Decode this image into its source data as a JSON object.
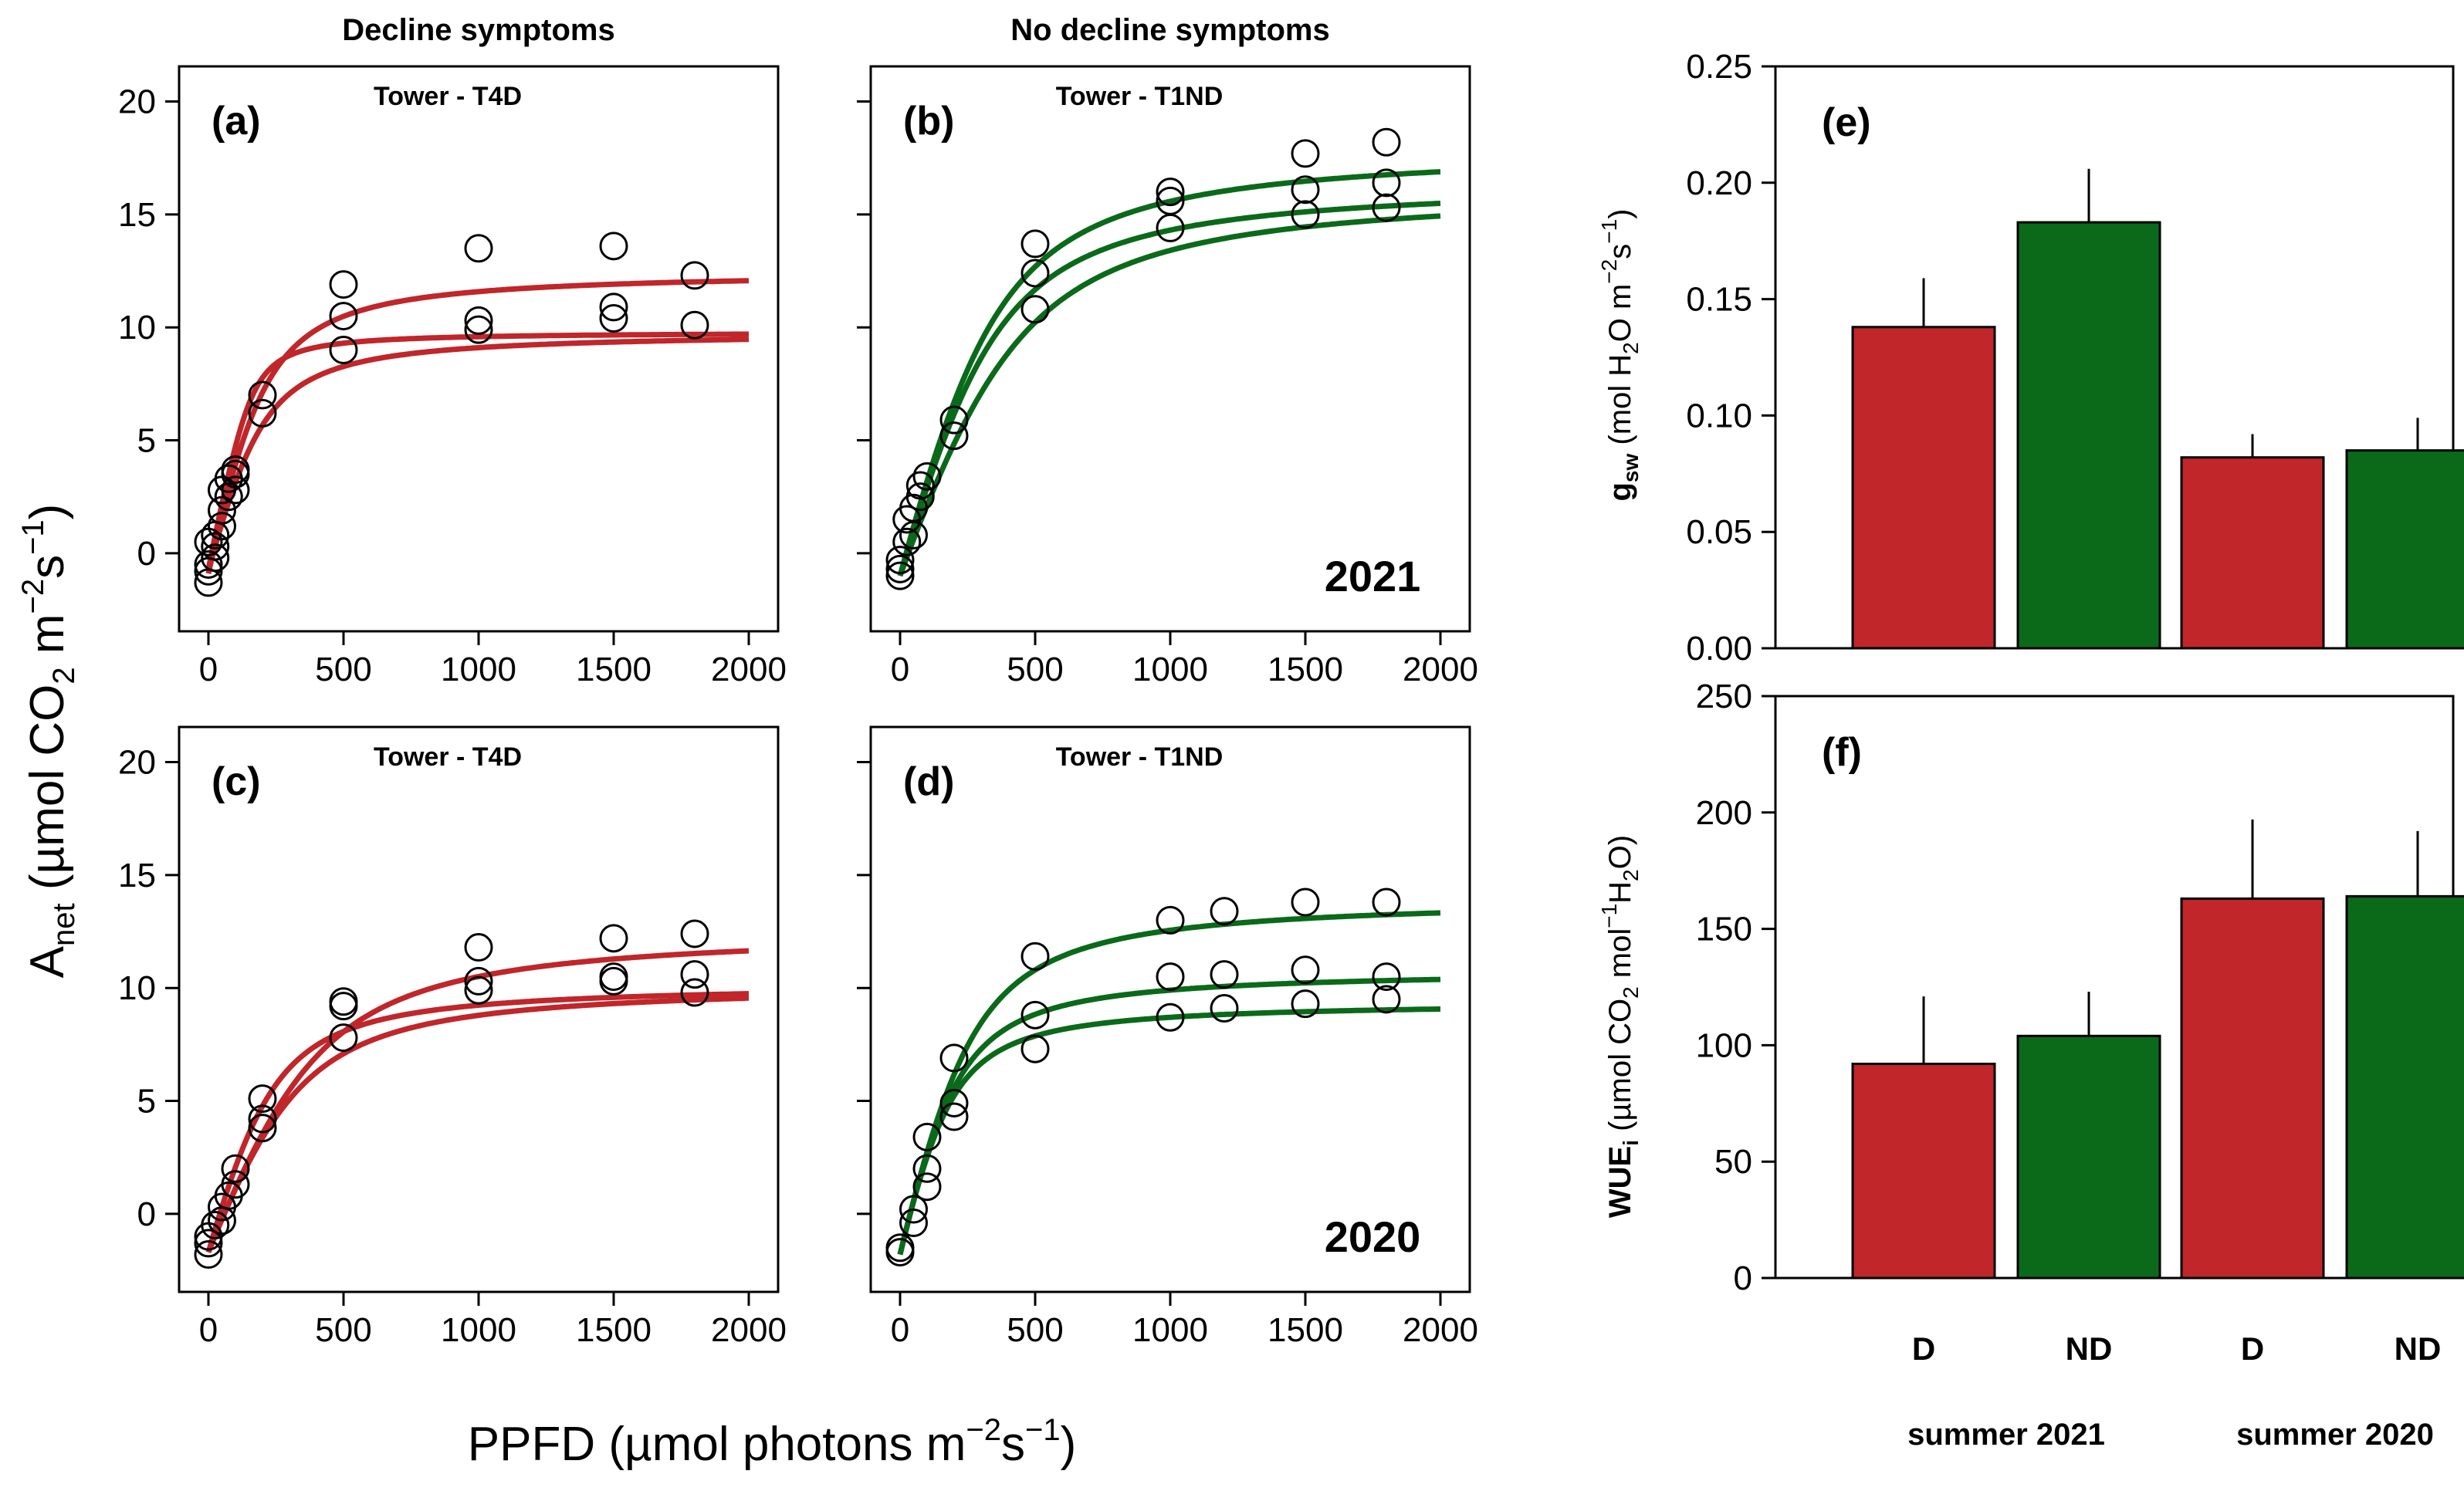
{
  "chart_data": [
    {
      "type": "scatter",
      "panel": "(a)",
      "column_title": "Decline symptoms",
      "subtitle": "Tower - T4D",
      "year_label": "",
      "color": "#c0262a",
      "xlim": [
        0,
        2000
      ],
      "ylim": [
        -2.5,
        20
      ],
      "xticks": [
        0,
        500,
        1000,
        1500,
        2000
      ],
      "yticks": [
        0,
        5,
        10,
        15,
        20
      ],
      "curves": [
        {
          "amax": 13.4,
          "phi": 0.055,
          "rd": 0.9
        },
        {
          "amax": 10.5,
          "phi": 0.06,
          "rd": 0.7,
          "theta": 0.9
        },
        {
          "amax": 10.6,
          "phi": 0.045,
          "rd": 0.8
        }
      ],
      "points": {
        "x": [
          0,
          0,
          0,
          0,
          25,
          25,
          25,
          50,
          50,
          50,
          75,
          75,
          100,
          100,
          100,
          200,
          200,
          500,
          500,
          500,
          1000,
          1000,
          1000,
          1500,
          1500,
          1500,
          1800,
          1800
        ],
        "y": [
          -1.3,
          -0.8,
          -0.5,
          0.5,
          -0.2,
          0.3,
          0.8,
          1.2,
          1.9,
          2.8,
          2.5,
          3.3,
          2.8,
          3.5,
          3.7,
          6.2,
          7.0,
          9.0,
          10.5,
          11.9,
          9.9,
          10.3,
          13.5,
          10.4,
          10.9,
          13.6,
          10.1,
          12.3
        ]
      }
    },
    {
      "type": "scatter",
      "panel": "(b)",
      "column_title": "No decline symptoms",
      "subtitle": "Tower - T1ND",
      "year_label": "2021",
      "color": "#0a6a1a",
      "xlim": [
        0,
        2000
      ],
      "ylim": [
        -2.5,
        20
      ],
      "xticks": [
        0,
        500,
        1000,
        1500,
        2000
      ],
      "yticks": [
        0,
        5,
        10,
        15,
        20
      ],
      "curves": [
        {
          "amax": 19.0,
          "phi": 0.045,
          "rd": 1.0
        },
        {
          "amax": 17.5,
          "phi": 0.042,
          "rd": 1.0
        },
        {
          "amax": 17.2,
          "phi": 0.033,
          "rd": 1.0
        }
      ],
      "points": {
        "x": [
          0,
          0,
          0,
          25,
          25,
          50,
          50,
          75,
          75,
          100,
          200,
          200,
          500,
          500,
          500,
          1000,
          1000,
          1000,
          1500,
          1500,
          1500,
          1800,
          1800,
          1800
        ],
        "y": [
          -1.0,
          -0.7,
          -0.3,
          0.5,
          1.5,
          0.8,
          2.0,
          2.5,
          3.0,
          3.4,
          5.2,
          5.9,
          10.8,
          12.4,
          13.7,
          14.4,
          15.6,
          16.0,
          15.0,
          16.1,
          17.7,
          15.3,
          16.4,
          18.2
        ]
      }
    },
    {
      "type": "scatter",
      "panel": "(c)",
      "column_title": "",
      "subtitle": "Tower - T4D",
      "year_label": "",
      "color": "#c0262a",
      "xlim": [
        0,
        2000
      ],
      "ylim": [
        -2.5,
        20
      ],
      "xticks": [
        0,
        500,
        1000,
        1500,
        2000
      ],
      "yticks": [
        0,
        5,
        10,
        15,
        20
      ],
      "curves": [
        {
          "amax": 14.3,
          "phi": 0.03,
          "rd": 1.7
        },
        {
          "amax": 11.9,
          "phi": 0.042,
          "rd": 1.7
        },
        {
          "amax": 11.9,
          "phi": 0.03,
          "rd": 1.7
        }
      ],
      "points": {
        "x": [
          0,
          0,
          0,
          25,
          50,
          50,
          75,
          100,
          100,
          200,
          200,
          200,
          500,
          500,
          500,
          1000,
          1000,
          1000,
          1500,
          1500,
          1500,
          1800,
          1800,
          1800
        ],
        "y": [
          -1.8,
          -1.3,
          -1.0,
          -0.5,
          -0.3,
          0.3,
          0.8,
          1.3,
          2.0,
          3.8,
          4.2,
          5.1,
          7.8,
          9.2,
          9.4,
          9.9,
          10.3,
          11.8,
          10.3,
          10.5,
          12.2,
          9.8,
          10.6,
          12.4
        ]
      }
    },
    {
      "type": "scatter",
      "panel": "(d)",
      "column_title": "",
      "subtitle": "Tower - T1ND",
      "year_label": "2020",
      "color": "#0a6a1a",
      "xlim": [
        0,
        2000
      ],
      "ylim": [
        -2.5,
        20
      ],
      "xticks": [
        0,
        500,
        1000,
        1500,
        2000
      ],
      "yticks": [
        0,
        5,
        10,
        15,
        20
      ],
      "curves": [
        {
          "amax": 15.8,
          "phi": 0.05,
          "rd": 1.8
        },
        {
          "amax": 12.6,
          "phi": 0.05,
          "rd": 1.8
        },
        {
          "amax": 11.2,
          "phi": 0.05,
          "rd": 1.8
        }
      ],
      "points": {
        "x": [
          0,
          0,
          50,
          50,
          100,
          100,
          100,
          200,
          200,
          200,
          500,
          500,
          500,
          1000,
          1000,
          1000,
          1200,
          1200,
          1200,
          1500,
          1500,
          1500,
          1800,
          1800,
          1800
        ],
        "y": [
          -1.7,
          -1.5,
          -0.4,
          0.2,
          1.2,
          2.0,
          3.4,
          4.3,
          4.9,
          6.9,
          7.3,
          8.8,
          11.4,
          8.7,
          10.5,
          13.0,
          9.1,
          10.6,
          13.4,
          9.3,
          10.8,
          13.8,
          9.5,
          10.5,
          13.8
        ]
      }
    },
    {
      "type": "bar",
      "panel": "(e)",
      "ylabel_main": "g",
      "ylabel_sub": "sw",
      "ylabel_rest": " (mol H",
      "ylabel_rest2": "O m",
      "ylabel_rest3": "s",
      "ylim": [
        0,
        0.25
      ],
      "yticks": [
        "0.00",
        "0.05",
        "0.10",
        "0.15",
        "0.20",
        "0.25"
      ],
      "categories": [
        "D",
        "ND",
        "D",
        "ND"
      ],
      "values": [
        0.138,
        0.183,
        0.082,
        0.085
      ],
      "errors": [
        0.021,
        0.023,
        0.01,
        0.014
      ],
      "colors": [
        "#c0262a",
        "#0a6a1a",
        "#c0262a",
        "#0a6a1a"
      ]
    },
    {
      "type": "bar",
      "panel": "(f)",
      "ylabel_main": "WUE",
      "ylabel_sub": "i",
      "ylabel_rest": " (µmol CO",
      "ylabel_rest2": " mol",
      "ylabel_rest3": "H",
      "ylabel_rest4": "O)",
      "ylim": [
        0,
        250
      ],
      "yticks": [
        "0",
        "50",
        "100",
        "150",
        "200",
        "250"
      ],
      "categories": [
        "D",
        "ND",
        "D",
        "ND"
      ],
      "values": [
        92,
        104,
        163,
        164
      ],
      "errors": [
        29,
        19,
        34,
        28
      ],
      "colors": [
        "#c0262a",
        "#0a6a1a",
        "#c0262a",
        "#0a6a1a"
      ],
      "group_labels": [
        "summer 2021",
        "summer 2020"
      ]
    }
  ],
  "axis_labels": {
    "y_main": "A",
    "y_sub": "net",
    "y_rest": " (µmol CO",
    "y_sub2": "2",
    "y_rest2": " m",
    "y_sup": "−2",
    "y_rest3": "s",
    "y_sup2": "−1",
    "y_end": ")",
    "x_main": "PPFD (µmol photons m",
    "x_sup": "−2",
    "x_rest": "s",
    "x_sup2": "−1",
    "x_end": ")"
  }
}
